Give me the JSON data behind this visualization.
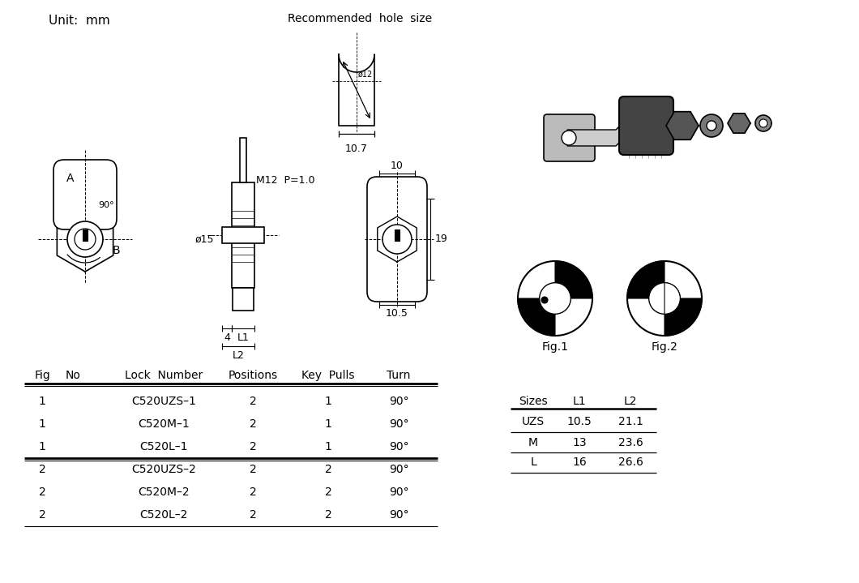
{
  "bg_color": "#ffffff",
  "unit_text": "Unit:  mm",
  "hole_size_text": "Recommended  hole  size",
  "dim_labels": {
    "hole_dim": "10.7",
    "hole_diam": "ø12",
    "m12": "M12  P=1.0",
    "phi15": "ø15",
    "dim4": "4",
    "L1": "L1",
    "L2": "L2",
    "dim10": "10",
    "dim19": "19",
    "dim10_5": "10.5",
    "A": "A",
    "B": "B",
    "ninety": "90°",
    "fig1": "Fig.1",
    "fig2": "Fig.2"
  },
  "main_table_headers": [
    "Fig",
    "No",
    "Lock  Number",
    "Positions",
    "Key  Pulls",
    "Turn"
  ],
  "main_table_rows": [
    [
      "1",
      "",
      "C520UZS–1",
      "2",
      "1",
      "90°"
    ],
    [
      "1",
      "",
      "C520M–1",
      "2",
      "1",
      "90°"
    ],
    [
      "1",
      "",
      "C520L–1",
      "2",
      "1",
      "90°"
    ],
    [
      "2",
      "",
      "C520UZS–2",
      "2",
      "2",
      "90°"
    ],
    [
      "2",
      "",
      "C520M–2",
      "2",
      "2",
      "90°"
    ],
    [
      "2",
      "",
      "C520L–2",
      "2",
      "2",
      "90°"
    ]
  ],
  "sizes_table_headers": [
    "Sizes",
    "L1",
    "L2"
  ],
  "sizes_table_rows": [
    [
      "UZS",
      "10.5",
      "21.1"
    ],
    [
      "M",
      "13",
      "23.6"
    ],
    [
      "L",
      "16",
      "26.6"
    ]
  ]
}
